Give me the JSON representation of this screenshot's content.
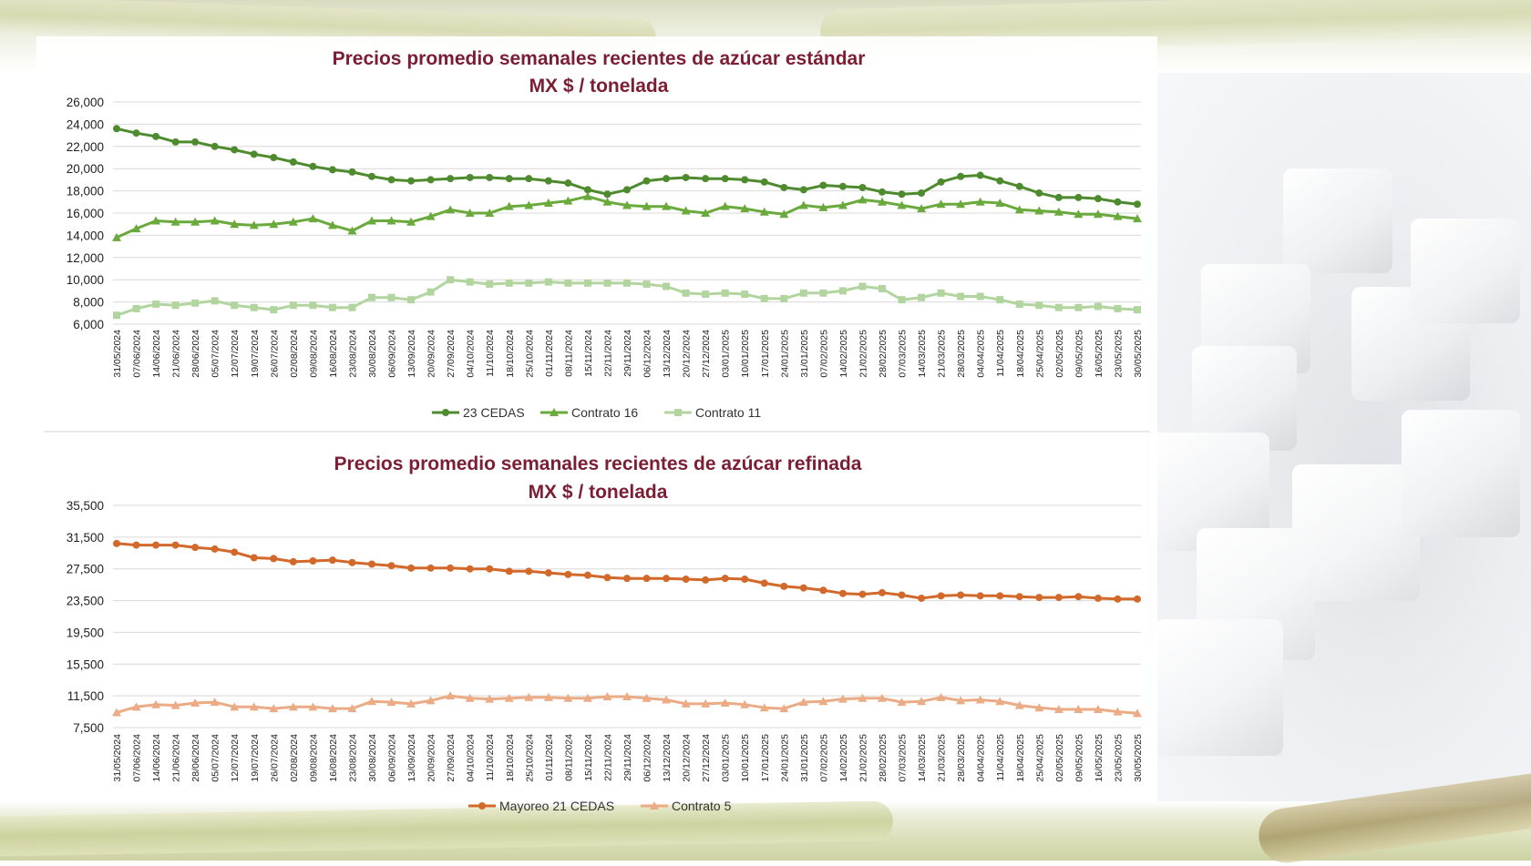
{
  "chart_data": [
    {
      "type": "line",
      "title": "Precios promedio semanales recientes de azúcar estándar",
      "subtitle": "MX $ / tonelada",
      "xlabel": "",
      "ylabel": "",
      "ylim": [
        6000,
        26000
      ],
      "yticks": [
        6000,
        8000,
        10000,
        12000,
        14000,
        16000,
        18000,
        20000,
        22000,
        24000,
        26000
      ],
      "ytick_labels": [
        "6,000",
        "8,000",
        "10,000",
        "12,000",
        "14,000",
        "16,000",
        "18,000",
        "20,000",
        "22,000",
        "24,000",
        "26,000"
      ],
      "grid": true,
      "legend": "bottom",
      "categories": [
        "31/05/2024",
        "07/06/2024",
        "14/06/2024",
        "21/06/2024",
        "28/06/2024",
        "05/07/2024",
        "12/07/2024",
        "19/07/2024",
        "26/07/2024",
        "02/08/2024",
        "09/08/2024",
        "16/08/2024",
        "23/08/2024",
        "30/08/2024",
        "06/09/2024",
        "13/09/2024",
        "20/09/2024",
        "27/09/2024",
        "04/10/2024",
        "11/10/2024",
        "18/10/2024",
        "25/10/2024",
        "01/11/2024",
        "08/11/2024",
        "15/11/2024",
        "22/11/2024",
        "29/11/2024",
        "06/12/2024",
        "13/12/2024",
        "20/12/2024",
        "27/12/2024",
        "03/01/2025",
        "10/01/2025",
        "17/01/2025",
        "24/01/2025",
        "31/01/2025",
        "07/02/2025",
        "14/02/2025",
        "21/02/2025",
        "28/02/2025",
        "07/03/2025",
        "14/03/2025",
        "21/03/2025",
        "28/03/2025",
        "04/04/2025",
        "11/04/2025",
        "18/04/2025",
        "25/04/2025",
        "02/05/2025",
        "09/05/2025",
        "16/05/2025",
        "23/05/2025",
        "30/05/2025"
      ],
      "series": [
        {
          "name": "23 CEDAS",
          "color": "#4e8a2e",
          "marker": "circle",
          "values": [
            23600,
            23200,
            22900,
            22400,
            22400,
            22000,
            21700,
            21300,
            21000,
            20600,
            20200,
            19900,
            19700,
            19300,
            19000,
            18900,
            19000,
            19100,
            19200,
            19200,
            19100,
            19100,
            18900,
            18700,
            18100,
            17700,
            18100,
            18900,
            19100,
            19200,
            19100,
            19100,
            19000,
            18800,
            18300,
            18100,
            18500,
            18400,
            18300,
            17900,
            17700,
            17800,
            18800,
            19300,
            19400,
            18900,
            18400,
            17800,
            17400,
            17400,
            17300,
            17000,
            16800
          ]
        },
        {
          "name": "Contrato 16",
          "color": "#6aaa3c",
          "marker": "triangle",
          "values": [
            13800,
            14600,
            15300,
            15200,
            15200,
            15300,
            15000,
            14900,
            15000,
            15200,
            15500,
            14900,
            14400,
            15300,
            15300,
            15200,
            15700,
            16300,
            16000,
            16000,
            16600,
            16700,
            16900,
            17100,
            17500,
            17000,
            16700,
            16600,
            16600,
            16200,
            16000,
            16600,
            16400,
            16100,
            15900,
            16700,
            16500,
            16700,
            17200,
            17000,
            16700,
            16400,
            16800,
            16800,
            17000,
            16900,
            16300,
            16200,
            16100,
            15900,
            15900,
            15700,
            15500
          ]
        },
        {
          "name": "Contrato 11",
          "color": "#b2d5a0",
          "marker": "square",
          "values": [
            6800,
            7400,
            7800,
            7700,
            7900,
            8100,
            7700,
            7500,
            7300,
            7700,
            7700,
            7500,
            7500,
            8400,
            8400,
            8200,
            8900,
            10000,
            9800,
            9600,
            9700,
            9700,
            9800,
            9700,
            9700,
            9700,
            9700,
            9600,
            9400,
            8800,
            8700,
            8800,
            8700,
            8300,
            8300,
            8800,
            8800,
            9000,
            9400,
            9200,
            8200,
            8400,
            8800,
            8500,
            8500,
            8200,
            7800,
            7700,
            7500,
            7500,
            7600,
            7400,
            7300
          ]
        }
      ]
    },
    {
      "type": "line",
      "title": "Precios promedio semanales recientes de azúcar refinada",
      "subtitle": "MX $ / tonelada",
      "xlabel": "",
      "ylabel": "",
      "ylim": [
        7500,
        35500
      ],
      "yticks": [
        7500,
        11500,
        15500,
        19500,
        23500,
        27500,
        31500,
        35500
      ],
      "ytick_labels": [
        "7,500",
        "11,500",
        "15,500",
        "19,500",
        "23,500",
        "27,500",
        "31,500",
        "35,500"
      ],
      "grid": true,
      "legend": "bottom",
      "categories": [
        "31/05/2024",
        "07/06/2024",
        "14/06/2024",
        "21/06/2024",
        "28/06/2024",
        "05/07/2024",
        "12/07/2024",
        "19/07/2024",
        "26/07/2024",
        "02/08/2024",
        "09/08/2024",
        "16/08/2024",
        "23/08/2024",
        "30/08/2024",
        "06/09/2024",
        "13/09/2024",
        "20/09/2024",
        "27/09/2024",
        "04/10/2024",
        "11/10/2024",
        "18/10/2024",
        "25/10/2024",
        "01/11/2024",
        "08/11/2024",
        "15/11/2024",
        "22/11/2024",
        "29/11/2024",
        "06/12/2024",
        "13/12/2024",
        "20/12/2024",
        "27/12/2024",
        "03/01/2025",
        "10/01/2025",
        "17/01/2025",
        "24/01/2025",
        "31/01/2025",
        "07/02/2025",
        "14/02/2025",
        "21/02/2025",
        "28/02/2025",
        "07/03/2025",
        "14/03/2025",
        "21/03/2025",
        "28/03/2025",
        "04/04/2025",
        "11/04/2025",
        "18/04/2025",
        "25/04/2025",
        "02/05/2025",
        "09/05/2025",
        "16/05/2025",
        "23/05/2025",
        "30/05/2025"
      ],
      "series": [
        {
          "name": "Mayoreo 21 CEDAS",
          "color": "#d2692b",
          "marker": "circle",
          "values": [
            30700,
            30500,
            30500,
            30500,
            30200,
            30000,
            29600,
            28900,
            28800,
            28400,
            28500,
            28600,
            28300,
            28100,
            27900,
            27600,
            27600,
            27600,
            27500,
            27500,
            27200,
            27200,
            27000,
            26800,
            26700,
            26400,
            26300,
            26300,
            26300,
            26200,
            26100,
            26300,
            26200,
            25700,
            25300,
            25100,
            24800,
            24400,
            24300,
            24500,
            24200,
            23800,
            24100,
            24200,
            24100,
            24100,
            24000,
            23900,
            23900,
            24000,
            23800,
            23700,
            23700
          ]
        },
        {
          "name": "Contrato 5",
          "color": "#ebab85",
          "marker": "triangle",
          "values": [
            9400,
            10100,
            10400,
            10300,
            10600,
            10700,
            10100,
            10100,
            9900,
            10100,
            10100,
            9900,
            9900,
            10800,
            10700,
            10500,
            10900,
            11500,
            11200,
            11100,
            11200,
            11300,
            11300,
            11200,
            11200,
            11400,
            11400,
            11200,
            11000,
            10500,
            10500,
            10600,
            10400,
            10000,
            9900,
            10700,
            10800,
            11100,
            11200,
            11200,
            10700,
            10800,
            11300,
            10900,
            11000,
            10800,
            10300,
            10000,
            9800,
            9800,
            9800,
            9500,
            9300
          ]
        }
      ]
    }
  ]
}
